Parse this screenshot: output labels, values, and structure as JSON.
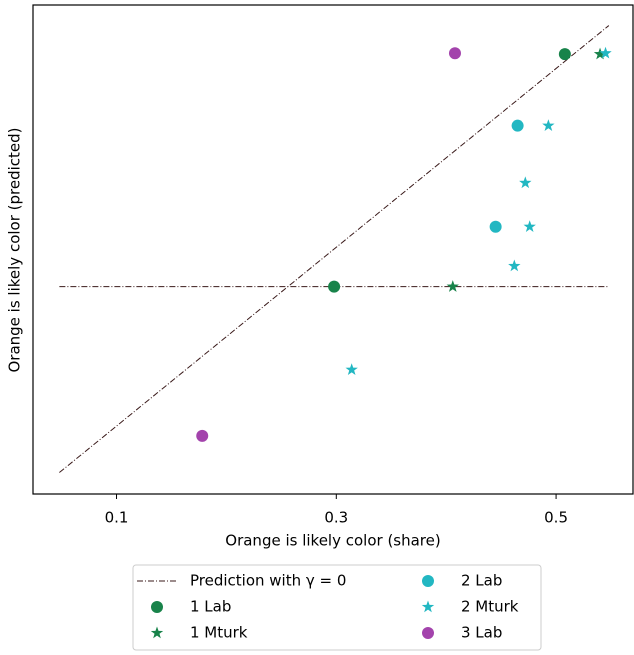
{
  "chart_data": {
    "type": "scatter",
    "x_label": "Orange is likely color (share)",
    "y_label": "Orange is likely color (predicted)",
    "xlim": [
      0.024,
      0.57
    ],
    "ylim": [
      0.024,
      0.571
    ],
    "xticks": [
      0.1,
      0.3,
      0.5
    ],
    "reference_line": {
      "name": "Prediction with γ = 0",
      "color": "#3a1a1a",
      "segments": [
        {
          "x": [
            0.048,
            0.548
          ],
          "y": [
            0.048,
            0.548
          ]
        },
        {
          "x": [
            0.048,
            0.548
          ],
          "y": [
            0.256,
            0.256
          ]
        }
      ]
    },
    "series": [
      {
        "name": "1 Lab",
        "color": "#18834a",
        "marker": "circle",
        "x": [
          0.508,
          0.298
        ],
        "values": [
          0.516,
          0.256
        ]
      },
      {
        "name": "1 Mturk",
        "color": "#18834a",
        "marker": "star",
        "x": [
          0.54,
          0.406
        ],
        "values": [
          0.516,
          0.256
        ]
      },
      {
        "name": "2 Lab",
        "color": "#22b7c2",
        "marker": "circle",
        "x": [
          0.465,
          0.445
        ],
        "values": [
          0.436,
          0.323
        ]
      },
      {
        "name": "2 Mturk",
        "color": "#22b7c2",
        "marker": "star",
        "x": [
          0.545,
          0.493,
          0.472,
          0.476,
          0.462,
          0.314
        ],
        "values": [
          0.517,
          0.436,
          0.372,
          0.323,
          0.279,
          0.163
        ]
      },
      {
        "name": "3 Lab",
        "color": "#a343ac",
        "marker": "circle",
        "x": [
          0.408,
          0.178
        ],
        "values": [
          0.517,
          0.089
        ]
      }
    ]
  }
}
